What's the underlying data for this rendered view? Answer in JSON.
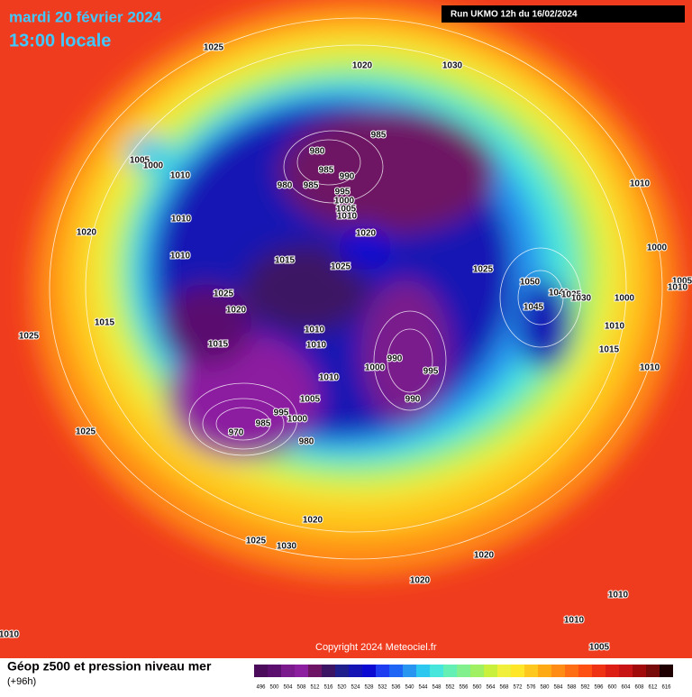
{
  "header": {
    "date": "mardi 20 février 2024",
    "time": "13:00 locale",
    "run": "Run UKMO 12h du 16/02/2024"
  },
  "map": {
    "copyright": "Copyright 2024 Meteociel.fr",
    "isobar_labels": [
      "1025",
      "1020",
      "1030",
      "1005",
      "1000",
      "1010",
      "980",
      "985",
      "985",
      "990",
      "980",
      "985",
      "995",
      "1000",
      "1005",
      "1010",
      "1020",
      "1010",
      "1020",
      "1010",
      "1015",
      "1025",
      "1025",
      "1050",
      "1040",
      "1035",
      "1030",
      "1045",
      "1010",
      "1000",
      "1000",
      "1005",
      "1010",
      "1010",
      "1015",
      "1010",
      "1025",
      "1020",
      "1015",
      "1025",
      "1015",
      "1010",
      "1010",
      "990",
      "1000",
      "995",
      "1010",
      "990",
      "1005",
      "995",
      "1000",
      "985",
      "970",
      "980",
      "1025",
      "1020",
      "1025",
      "1030",
      "1020",
      "1020",
      "1010",
      "1010",
      "1005",
      "1010"
    ]
  },
  "legend": {
    "title": "Géop z500 et pression niveau mer",
    "subtitle": "(+96h)",
    "levels": [
      {
        "label": "496",
        "color": "#4b0c5c"
      },
      {
        "label": "500",
        "color": "#5a0f6e"
      },
      {
        "label": "504",
        "color": "#7a1a8c"
      },
      {
        "label": "508",
        "color": "#8c1ea0"
      },
      {
        "label": "512",
        "color": "#6e1464"
      },
      {
        "label": "516",
        "color": "#3c1464"
      },
      {
        "label": "520",
        "color": "#1e1e8c"
      },
      {
        "label": "524",
        "color": "#1414b4"
      },
      {
        "label": "528",
        "color": "#0a0ad2"
      },
      {
        "label": "532",
        "color": "#1e3cf0"
      },
      {
        "label": "536",
        "color": "#1e64f5"
      },
      {
        "label": "540",
        "color": "#2896f0"
      },
      {
        "label": "544",
        "color": "#2dc8f0"
      },
      {
        "label": "548",
        "color": "#46e6dc"
      },
      {
        "label": "552",
        "color": "#64f0b4"
      },
      {
        "label": "556",
        "color": "#82f08c"
      },
      {
        "label": "560",
        "color": "#a0f064"
      },
      {
        "label": "564",
        "color": "#c8f03c"
      },
      {
        "label": "568",
        "color": "#f0f03c"
      },
      {
        "label": "572",
        "color": "#ffe628"
      },
      {
        "label": "576",
        "color": "#ffc81e"
      },
      {
        "label": "580",
        "color": "#ffaa14"
      },
      {
        "label": "584",
        "color": "#ff8c14"
      },
      {
        "label": "588",
        "color": "#ff6e14"
      },
      {
        "label": "592",
        "color": "#ff5014"
      },
      {
        "label": "596",
        "color": "#f03214"
      },
      {
        "label": "600",
        "color": "#dc1e14"
      },
      {
        "label": "604",
        "color": "#c81414"
      },
      {
        "label": "608",
        "color": "#a00a0a"
      },
      {
        "label": "612",
        "color": "#780a0a"
      },
      {
        "label": "616",
        "color": "#1e0000"
      }
    ]
  }
}
